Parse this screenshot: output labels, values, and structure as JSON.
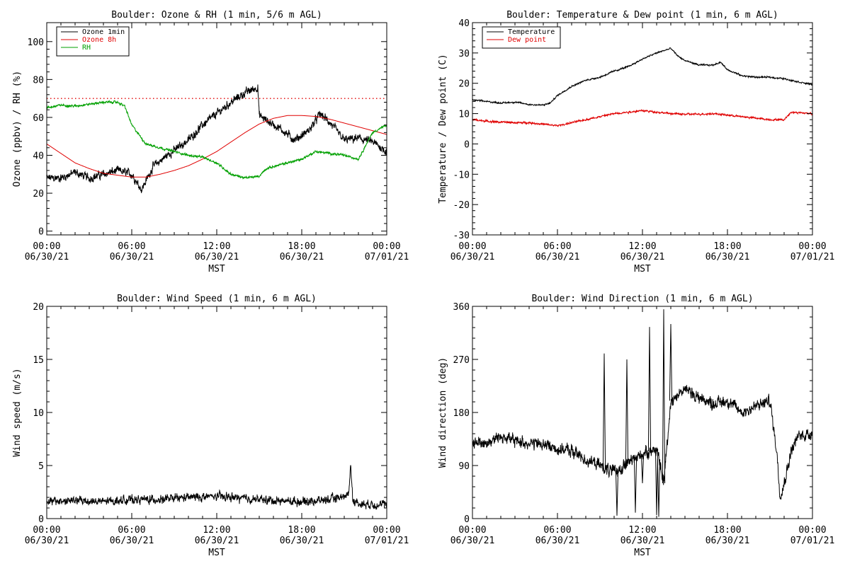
{
  "chart_data": [
    {
      "type": "line",
      "title": "Boulder: Ozone & RH (1 min, 5/6 m AGL)",
      "ylabel": "Ozone (ppbv) / RH (%)",
      "xlabel": "MST",
      "x_tick_labels": [
        [
          "00:00",
          "06/30/21"
        ],
        [
          "06:00",
          "06/30/21"
        ],
        [
          "12:00",
          "06/30/21"
        ],
        [
          "18:00",
          "06/30/21"
        ],
        [
          "00:00",
          "07/01/21"
        ]
      ],
      "x_range_hours": [
        0,
        24
      ],
      "ylim": [
        -2,
        110
      ],
      "y_ticks": [
        0,
        20,
        40,
        60,
        80,
        100
      ],
      "legend": {
        "placement": "top-left",
        "entries": [
          "Ozone 1min",
          "Ozone 8h",
          "RH"
        ]
      },
      "reference_lines": [
        {
          "y": 70,
          "color": "#e00000",
          "style": "dotted"
        }
      ],
      "series": [
        {
          "name": "Ozone 1min",
          "color": "#000000",
          "noise": 2.5,
          "points": [
            [
              0,
              28
            ],
            [
              1,
              28
            ],
            [
              2,
              31
            ],
            [
              3,
              28
            ],
            [
              4,
              30
            ],
            [
              5,
              32
            ],
            [
              6,
              30
            ],
            [
              6.7,
              22
            ],
            [
              7.5,
              34
            ],
            [
              8.5,
              40
            ],
            [
              10,
              48
            ],
            [
              11,
              56
            ],
            [
              12,
              62
            ],
            [
              13,
              68
            ],
            [
              14,
              73
            ],
            [
              14.9,
              76
            ],
            [
              15,
              61
            ],
            [
              15.6,
              58
            ],
            [
              16.5,
              54
            ],
            [
              17.5,
              48
            ],
            [
              18.5,
              53
            ],
            [
              19.3,
              62
            ],
            [
              20,
              57
            ],
            [
              21,
              48
            ],
            [
              22,
              49
            ],
            [
              23,
              47
            ],
            [
              24,
              42
            ]
          ]
        },
        {
          "name": "Ozone 8h",
          "color": "#e00000",
          "noise": 0,
          "points": [
            [
              0,
              46
            ],
            [
              1,
              41
            ],
            [
              2,
              36
            ],
            [
              3,
              33
            ],
            [
              4,
              30.5
            ],
            [
              5,
              29.5
            ],
            [
              6,
              28.5
            ],
            [
              7,
              28.5
            ],
            [
              8,
              30
            ],
            [
              9,
              32
            ],
            [
              10,
              34.5
            ],
            [
              11,
              38
            ],
            [
              12,
              42
            ],
            [
              13,
              47
            ],
            [
              14,
              52
            ],
            [
              15,
              56.5
            ],
            [
              16,
              59.5
            ],
            [
              17,
              61
            ],
            [
              18,
              61
            ],
            [
              19,
              60.5
            ],
            [
              20,
              59
            ],
            [
              21,
              57
            ],
            [
              22,
              55
            ],
            [
              23,
              53
            ],
            [
              24,
              51
            ]
          ]
        },
        {
          "name": "RH",
          "color": "#00a000",
          "noise": 0.7,
          "points": [
            [
              0,
              65
            ],
            [
              1,
              66.5
            ],
            [
              2,
              66
            ],
            [
              3,
              67
            ],
            [
              4,
              68
            ],
            [
              5,
              68
            ],
            [
              5.5,
              66
            ],
            [
              6,
              56
            ],
            [
              7,
              46
            ],
            [
              8,
              44
            ],
            [
              9,
              42
            ],
            [
              10,
              40
            ],
            [
              11,
              39
            ],
            [
              12,
              36
            ],
            [
              13,
              30
            ],
            [
              14,
              28
            ],
            [
              15,
              29
            ],
            [
              15.5,
              33
            ],
            [
              16,
              34
            ],
            [
              17,
              36
            ],
            [
              18,
              38
            ],
            [
              19,
              42
            ],
            [
              20,
              41
            ],
            [
              21,
              40
            ],
            [
              22,
              38
            ],
            [
              23,
              52
            ],
            [
              24,
              56
            ]
          ]
        }
      ]
    },
    {
      "type": "line",
      "title": "Boulder: Temperature & Dew point (1 min, 6 m AGL)",
      "ylabel": "Temperature / Dew point (C)",
      "xlabel": "MST",
      "x_tick_labels": [
        [
          "00:00",
          "06/30/21"
        ],
        [
          "06:00",
          "06/30/21"
        ],
        [
          "12:00",
          "06/30/21"
        ],
        [
          "18:00",
          "06/30/21"
        ],
        [
          "00:00",
          "07/01/21"
        ]
      ],
      "x_range_hours": [
        0,
        24
      ],
      "ylim": [
        -30,
        40
      ],
      "y_ticks": [
        -30,
        -20,
        -10,
        0,
        10,
        20,
        30,
        40
      ],
      "legend": {
        "placement": "top-left",
        "entries": [
          "Temperature",
          "Dew point"
        ]
      },
      "series": [
        {
          "name": "Temperature",
          "color": "#000000",
          "noise": 0.3,
          "points": [
            [
              0,
              14.5
            ],
            [
              1,
              14
            ],
            [
              2,
              13.5
            ],
            [
              3,
              13.8
            ],
            [
              4,
              13
            ],
            [
              5,
              12.8
            ],
            [
              5.5,
              13.5
            ],
            [
              6,
              16
            ],
            [
              7,
              19
            ],
            [
              8,
              21
            ],
            [
              9,
              22
            ],
            [
              10,
              24
            ],
            [
              11,
              25.5
            ],
            [
              12,
              28
            ],
            [
              13,
              30
            ],
            [
              14,
              31.5
            ],
            [
              14.5,
              29
            ],
            [
              15,
              27.5
            ],
            [
              16,
              26
            ],
            [
              17,
              26
            ],
            [
              17.5,
              27
            ],
            [
              18,
              24.5
            ],
            [
              19,
              22.5
            ],
            [
              20,
              22
            ],
            [
              21,
              22
            ],
            [
              22,
              21.5
            ],
            [
              23,
              20.5
            ],
            [
              24,
              19.5
            ]
          ]
        },
        {
          "name": "Dew point",
          "color": "#e00000",
          "noise": 0.35,
          "points": [
            [
              0,
              8
            ],
            [
              1,
              7.5
            ],
            [
              2,
              7.2
            ],
            [
              3,
              7
            ],
            [
              4,
              7
            ],
            [
              5,
              6.5
            ],
            [
              6,
              6
            ],
            [
              7,
              7
            ],
            [
              8,
              8
            ],
            [
              9,
              9
            ],
            [
              10,
              10
            ],
            [
              11,
              10.5
            ],
            [
              12,
              11
            ],
            [
              13,
              10.5
            ],
            [
              14,
              10
            ],
            [
              15,
              9.8
            ],
            [
              16,
              9.8
            ],
            [
              17,
              10
            ],
            [
              18,
              9.5
            ],
            [
              19,
              9
            ],
            [
              20,
              8.5
            ],
            [
              21,
              8
            ],
            [
              22,
              8
            ],
            [
              22.5,
              10.5
            ],
            [
              24,
              10
            ]
          ]
        }
      ]
    },
    {
      "type": "line",
      "title": "Boulder: Wind Speed (1 min, 6 m AGL)",
      "ylabel": "Wind speed (m/s)",
      "xlabel": "MST",
      "x_tick_labels": [
        [
          "00:00",
          "06/30/21"
        ],
        [
          "06:00",
          "06/30/21"
        ],
        [
          "12:00",
          "06/30/21"
        ],
        [
          "18:00",
          "06/30/21"
        ],
        [
          "00:00",
          "07/01/21"
        ]
      ],
      "x_range_hours": [
        0,
        24
      ],
      "ylim": [
        0,
        20
      ],
      "y_ticks": [
        0,
        5,
        10,
        15,
        20
      ],
      "series": [
        {
          "name": "",
          "color": "#000000",
          "noise": 0.45,
          "points": [
            [
              0,
              1.6
            ],
            [
              2,
              1.7
            ],
            [
              4,
              1.6
            ],
            [
              6,
              1.8
            ],
            [
              8,
              1.8
            ],
            [
              10,
              2.0
            ],
            [
              12,
              2.1
            ],
            [
              14,
              1.9
            ],
            [
              16,
              1.7
            ],
            [
              18,
              1.6
            ],
            [
              20,
              1.8
            ],
            [
              21.3,
              2.2
            ],
            [
              21.45,
              5.2
            ],
            [
              21.6,
              1.8
            ],
            [
              22,
              1.4
            ],
            [
              24,
              1.3
            ]
          ]
        }
      ]
    },
    {
      "type": "line",
      "title": "Boulder: Wind Direction (1 min, 6 m AGL)",
      "ylabel": "Wind direction (deg)",
      "xlabel": "MST",
      "x_tick_labels": [
        [
          "00:00",
          "06/30/21"
        ],
        [
          "06:00",
          "06/30/21"
        ],
        [
          "12:00",
          "06/30/21"
        ],
        [
          "18:00",
          "06/30/21"
        ],
        [
          "00:00",
          "07/01/21"
        ]
      ],
      "x_range_hours": [
        0,
        24
      ],
      "ylim": [
        0,
        360
      ],
      "y_ticks": [
        0,
        90,
        180,
        270,
        360
      ],
      "series": [
        {
          "name": "",
          "color": "#000000",
          "noise": 12,
          "points": [
            [
              0,
              130
            ],
            [
              1,
              128
            ],
            [
              2,
              140
            ],
            [
              3,
              132
            ],
            [
              4,
              128
            ],
            [
              5,
              126
            ],
            [
              6,
              118
            ],
            [
              7,
              115
            ],
            [
              8,
              100
            ],
            [
              9,
              90
            ],
            [
              10,
              78
            ],
            [
              11,
              95
            ],
            [
              12,
              110
            ],
            [
              13,
              118
            ],
            [
              13.5,
              60
            ],
            [
              14,
              200
            ],
            [
              15,
              220
            ],
            [
              16,
              205
            ],
            [
              17,
              195
            ],
            [
              18,
              200
            ],
            [
              19,
              180
            ],
            [
              20,
              190
            ],
            [
              21,
              200
            ],
            [
              21.5,
              110
            ],
            [
              21.7,
              40
            ],
            [
              22,
              60
            ],
            [
              22.5,
              115
            ],
            [
              23,
              140
            ],
            [
              24,
              145
            ]
          ]
        }
      ],
      "spikes": [
        [
          9.3,
          280
        ],
        [
          10.9,
          270
        ],
        [
          12.5,
          325
        ],
        [
          13.15,
          3
        ],
        [
          13.5,
          355
        ],
        [
          14.0,
          330
        ],
        [
          12.0,
          60
        ],
        [
          13.0,
          6
        ],
        [
          10.2,
          5
        ],
        [
          11.5,
          10
        ]
      ]
    }
  ]
}
